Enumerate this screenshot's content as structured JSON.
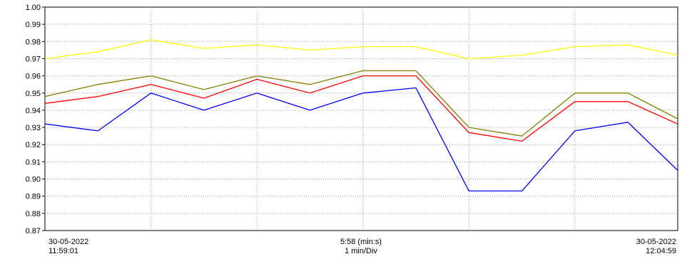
{
  "chart_data": {
    "type": "line",
    "title": "",
    "xlabel": "",
    "ylabel": "",
    "ylim": [
      0.87,
      1.0
    ],
    "yticks": [
      "1.00",
      "0.99",
      "0.98",
      "0.97",
      "0.96",
      "0.95",
      "0.94",
      "0.93",
      "0.92",
      "0.91",
      "0.90",
      "0.89",
      "0.88",
      "0.87"
    ],
    "grid": true,
    "x_start": {
      "date": "30-05-2022",
      "time": "11:59:01"
    },
    "x_center": {
      "span": "5:58 (min:s)",
      "division": "1 min/Div"
    },
    "x_end": {
      "date": "30-05-2022",
      "time": "12:04:59"
    },
    "x_minutes": [
      0,
      0.5,
      1,
      1.5,
      2,
      2.5,
      3,
      3.5,
      4,
      4.5,
      5,
      5.5,
      5.97
    ],
    "series": [
      {
        "color": "#ffff00",
        "values": [
          0.97,
          0.974,
          0.981,
          0.976,
          0.978,
          0.975,
          0.977,
          0.977,
          0.97,
          0.972,
          0.977,
          0.978,
          0.972
        ]
      },
      {
        "color": "#808000",
        "values": [
          0.948,
          0.955,
          0.96,
          0.952,
          0.96,
          0.955,
          0.963,
          0.963,
          0.93,
          0.925,
          0.95,
          0.95,
          0.935
        ]
      },
      {
        "color": "#ff0000",
        "values": [
          0.944,
          0.948,
          0.955,
          0.947,
          0.958,
          0.95,
          0.96,
          0.96,
          0.927,
          0.922,
          0.945,
          0.945,
          0.932
        ]
      },
      {
        "color": "#0000ff",
        "values": [
          0.932,
          0.928,
          0.95,
          0.94,
          0.95,
          0.94,
          0.95,
          0.953,
          0.893,
          0.893,
          0.928,
          0.933,
          0.905
        ]
      }
    ]
  }
}
